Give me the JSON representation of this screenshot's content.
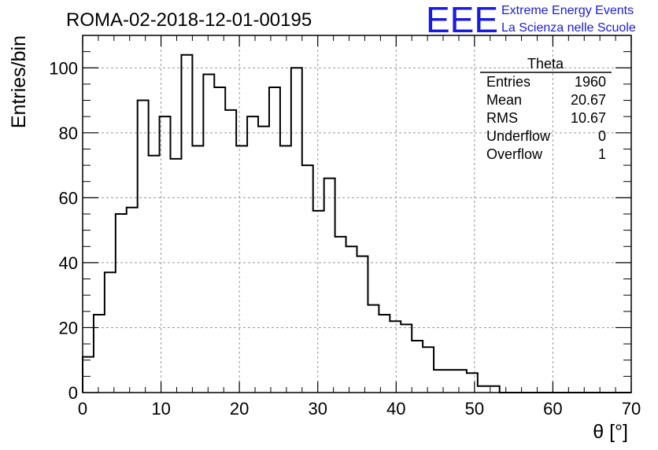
{
  "chart_data": {
    "type": "histogram",
    "title": "ROMA-02-2018-12-01-00195",
    "xlabel": "θ [°]",
    "ylabel": "Entries/bin",
    "xlim": [
      0,
      70
    ],
    "ylim": [
      0,
      110
    ],
    "x_ticks": [
      0,
      10,
      20,
      30,
      40,
      50,
      60,
      70
    ],
    "y_ticks": [
      0,
      20,
      40,
      60,
      80,
      100
    ],
    "grid": true,
    "bin_width": 1.4,
    "bin_edges_start": 0,
    "values": [
      11,
      24,
      37,
      55,
      57,
      90,
      73,
      85,
      72,
      104,
      76,
      98,
      94,
      87,
      76,
      85,
      82,
      94,
      76,
      100,
      70,
      56,
      66,
      48,
      45,
      42,
      27,
      24,
      22,
      21,
      16,
      14,
      7,
      7,
      7,
      6,
      2,
      2,
      0,
      0,
      0,
      0,
      0,
      0,
      0,
      0,
      0,
      0,
      0,
      0
    ]
  },
  "stats_box": {
    "name": "Theta",
    "rows": [
      {
        "label": "Entries",
        "value": "1960"
      },
      {
        "label": "Mean",
        "value": "20.67"
      },
      {
        "label": "RMS",
        "value": "10.67"
      },
      {
        "label": "Underflow",
        "value": "0"
      },
      {
        "label": "Overflow",
        "value": "1"
      }
    ]
  },
  "logo": {
    "mark": "EEE",
    "line1": "Extreme Energy Events",
    "line2": "La Scienza nelle Scuole"
  }
}
